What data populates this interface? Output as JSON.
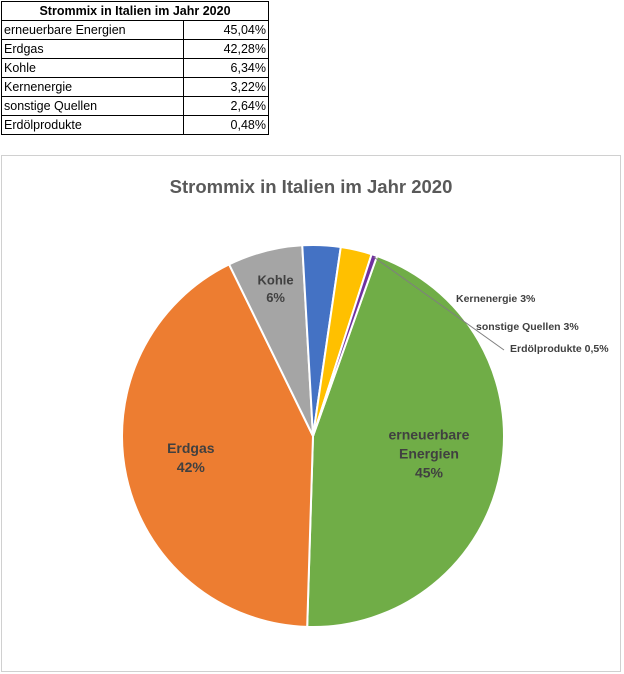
{
  "table": {
    "title": "Strommix in Italien im Jahr 2020",
    "rows": [
      {
        "label": "erneuerbare Energien",
        "value": "45,04%"
      },
      {
        "label": "Erdgas",
        "value": "42,28%"
      },
      {
        "label": "Kohle",
        "value": "6,34%"
      },
      {
        "label": "Kernenergie",
        "value": "3,22%"
      },
      {
        "label": "sonstige Quellen",
        "value": "2,64%"
      },
      {
        "label": "Erdölprodukte",
        "value": "0,48%"
      }
    ]
  },
  "chart_data": {
    "type": "pie",
    "title": "Strommix in Italien im Jahr 2020",
    "legend": "none",
    "slices": [
      {
        "name": "erneuerbare Energien",
        "value": 45.04,
        "color": "#70AD47",
        "label": [
          "erneuerbare",
          "Energien",
          "45%"
        ]
      },
      {
        "name": "Erdgas",
        "value": 42.28,
        "color": "#ED7D31",
        "label": [
          "Erdgas",
          "42%"
        ]
      },
      {
        "name": "Kohle",
        "value": 6.34,
        "color": "#A5A5A5",
        "label": [
          "Kohle",
          "6%"
        ]
      },
      {
        "name": "Kernenergie",
        "value": 3.22,
        "color": "#4472C4",
        "label": [
          "Kernenergie 3%"
        ]
      },
      {
        "name": "sonstige Quellen",
        "value": 2.64,
        "color": "#FFC000",
        "label": [
          "sonstige Quellen 3%"
        ]
      },
      {
        "name": "Erdölprodukte",
        "value": 0.48,
        "color": "#7030A0",
        "label": [
          "Erdölprodukte 0,5%"
        ]
      }
    ]
  }
}
